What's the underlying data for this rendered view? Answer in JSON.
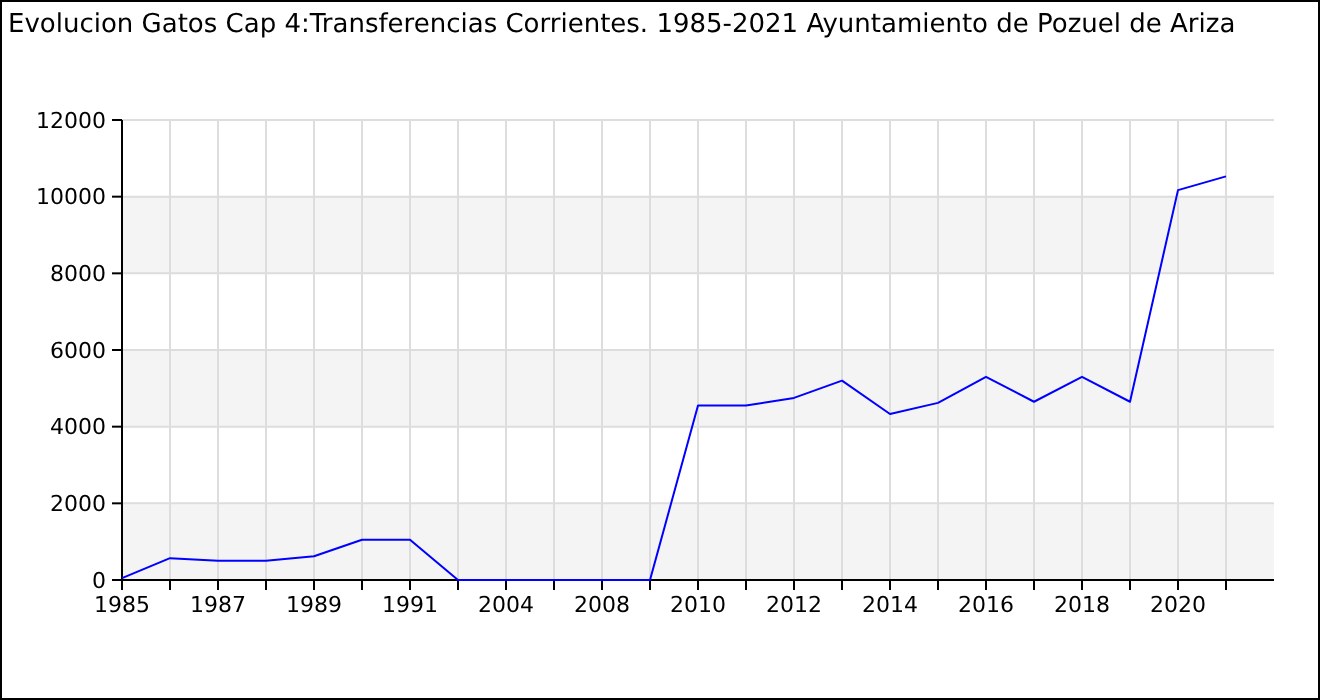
{
  "chart_data": {
    "type": "line",
    "title": "Evolucion Gatos Cap 4:Transferencias Corrientes. 1985-2021 Ayuntamiento de Pozuel de Ariza",
    "categories": [
      "1985",
      null,
      "1987",
      null,
      "1989",
      null,
      "1991",
      null,
      "2004",
      null,
      "2008",
      null,
      "2010",
      null,
      "2012",
      null,
      "2014",
      null,
      "2016",
      null,
      "2018",
      null,
      "2020",
      null
    ],
    "series": [
      {
        "color": "#0000ff",
        "values": [
          50,
          570,
          500,
          500,
          620,
          1050,
          1050,
          0,
          0,
          0,
          0,
          0,
          4550,
          4550,
          4750,
          5200,
          4330,
          4620,
          5300,
          4650,
          5300,
          4650,
          10170,
          10530
        ]
      }
    ],
    "ylim": [
      0,
      12000
    ],
    "yticks": [
      0,
      2000,
      4000,
      6000,
      8000,
      10000,
      12000
    ],
    "grid": true
  }
}
